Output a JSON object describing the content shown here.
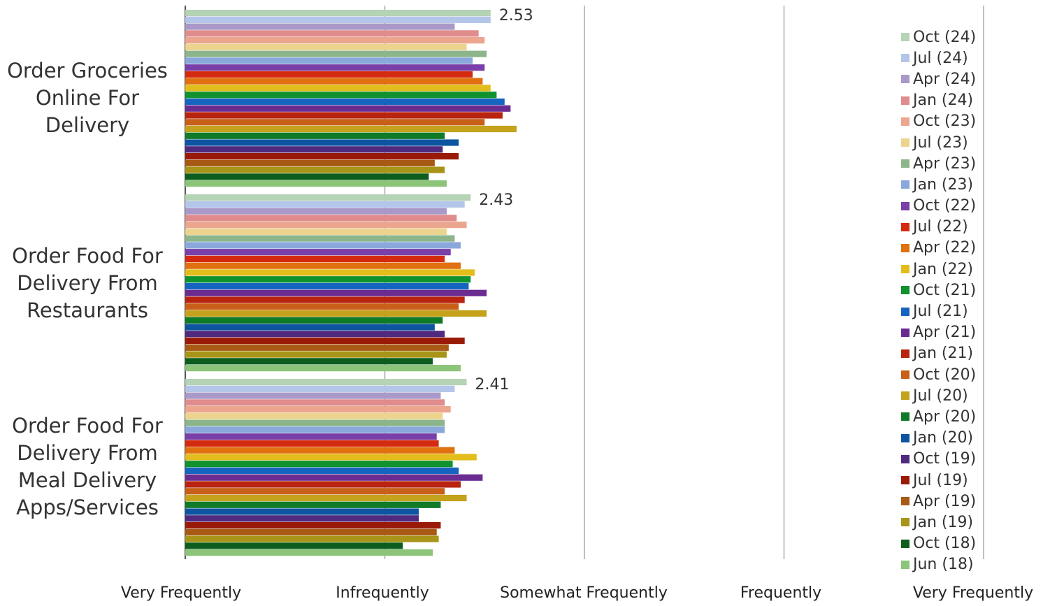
{
  "chart_data": {
    "type": "bar",
    "orientation": "horizontal",
    "xlim": [
      1,
      5
    ],
    "x_ticks": [
      "Very Frequently",
      "Infrequently",
      "Somewhat Frequently",
      "Frequently",
      "Very Frequently"
    ],
    "grid": true,
    "legend_position": "right",
    "categories": [
      [
        "Order Groceries",
        "Online For",
        "Delivery"
      ],
      [
        "Order Food For",
        "Delivery From",
        "Restaurants"
      ],
      [
        "Order Food For",
        "Delivery From",
        "Meal Delivery",
        "Apps/Services"
      ]
    ],
    "data_labels": [
      "2.53",
      "2.43",
      "2.41"
    ],
    "series": [
      {
        "name": "Oct (24)",
        "color": "#b5d3b5",
        "values": [
          2.53,
          2.43,
          2.41
        ]
      },
      {
        "name": "Jul (24)",
        "color": "#b3c5e8",
        "values": [
          2.53,
          2.4,
          2.35
        ]
      },
      {
        "name": "Apr (24)",
        "color": "#a999c9",
        "values": [
          2.35,
          2.31,
          2.28
        ]
      },
      {
        "name": "Jan (24)",
        "color": "#e08c8c",
        "values": [
          2.47,
          2.36,
          2.3
        ]
      },
      {
        "name": "Oct (23)",
        "color": "#eca58e",
        "values": [
          2.5,
          2.41,
          2.33
        ]
      },
      {
        "name": "Jul (23)",
        "color": "#ecd48e",
        "values": [
          2.41,
          2.31,
          2.29
        ]
      },
      {
        "name": "Apr (23)",
        "color": "#8cb58c",
        "values": [
          2.51,
          2.35,
          2.3
        ]
      },
      {
        "name": "Jan (23)",
        "color": "#8aa8dc",
        "values": [
          2.44,
          2.38,
          2.3
        ]
      },
      {
        "name": "Oct (22)",
        "color": "#7a3fa8",
        "values": [
          2.5,
          2.33,
          2.26
        ]
      },
      {
        "name": "Jul (22)",
        "color": "#d42a10",
        "values": [
          2.44,
          2.3,
          2.27
        ]
      },
      {
        "name": "Apr (22)",
        "color": "#e07010",
        "values": [
          2.49,
          2.38,
          2.35
        ]
      },
      {
        "name": "Jan (22)",
        "color": "#e2bd1c",
        "values": [
          2.53,
          2.45,
          2.46
        ]
      },
      {
        "name": "Oct (21)",
        "color": "#10922e",
        "values": [
          2.56,
          2.43,
          2.34
        ]
      },
      {
        "name": "Jul (21)",
        "color": "#1565c0",
        "values": [
          2.6,
          2.42,
          2.37
        ]
      },
      {
        "name": "Apr (21)",
        "color": "#6a2c91",
        "values": [
          2.63,
          2.51,
          2.49
        ]
      },
      {
        "name": "Jan (21)",
        "color": "#b82410",
        "values": [
          2.59,
          2.4,
          2.38
        ]
      },
      {
        "name": "Oct (20)",
        "color": "#c8601a",
        "values": [
          2.5,
          2.37,
          2.3
        ]
      },
      {
        "name": "Jul (20)",
        "color": "#c4a21c",
        "values": [
          2.66,
          2.51,
          2.41
        ]
      },
      {
        "name": "Apr (20)",
        "color": "#0f7a28",
        "values": [
          2.3,
          2.29,
          2.28
        ]
      },
      {
        "name": "Jan (20)",
        "color": "#0d55a0",
        "values": [
          2.37,
          2.25,
          2.17
        ]
      },
      {
        "name": "Oct (19)",
        "color": "#4f2a7e",
        "values": [
          2.29,
          2.3,
          2.17
        ]
      },
      {
        "name": "Jul (19)",
        "color": "#9a1a08",
        "values": [
          2.37,
          2.4,
          2.28
        ]
      },
      {
        "name": "Apr (19)",
        "color": "#a85a14",
        "values": [
          2.25,
          2.32,
          2.26
        ]
      },
      {
        "name": "Jan (19)",
        "color": "#a89418",
        "values": [
          2.3,
          2.31,
          2.27
        ]
      },
      {
        "name": "Oct (18)",
        "color": "#0d5e1e",
        "values": [
          2.22,
          2.24,
          2.09
        ]
      },
      {
        "name": "Jun (18)",
        "color": "#8cc47a",
        "values": [
          2.31,
          2.38,
          2.24
        ]
      }
    ]
  }
}
